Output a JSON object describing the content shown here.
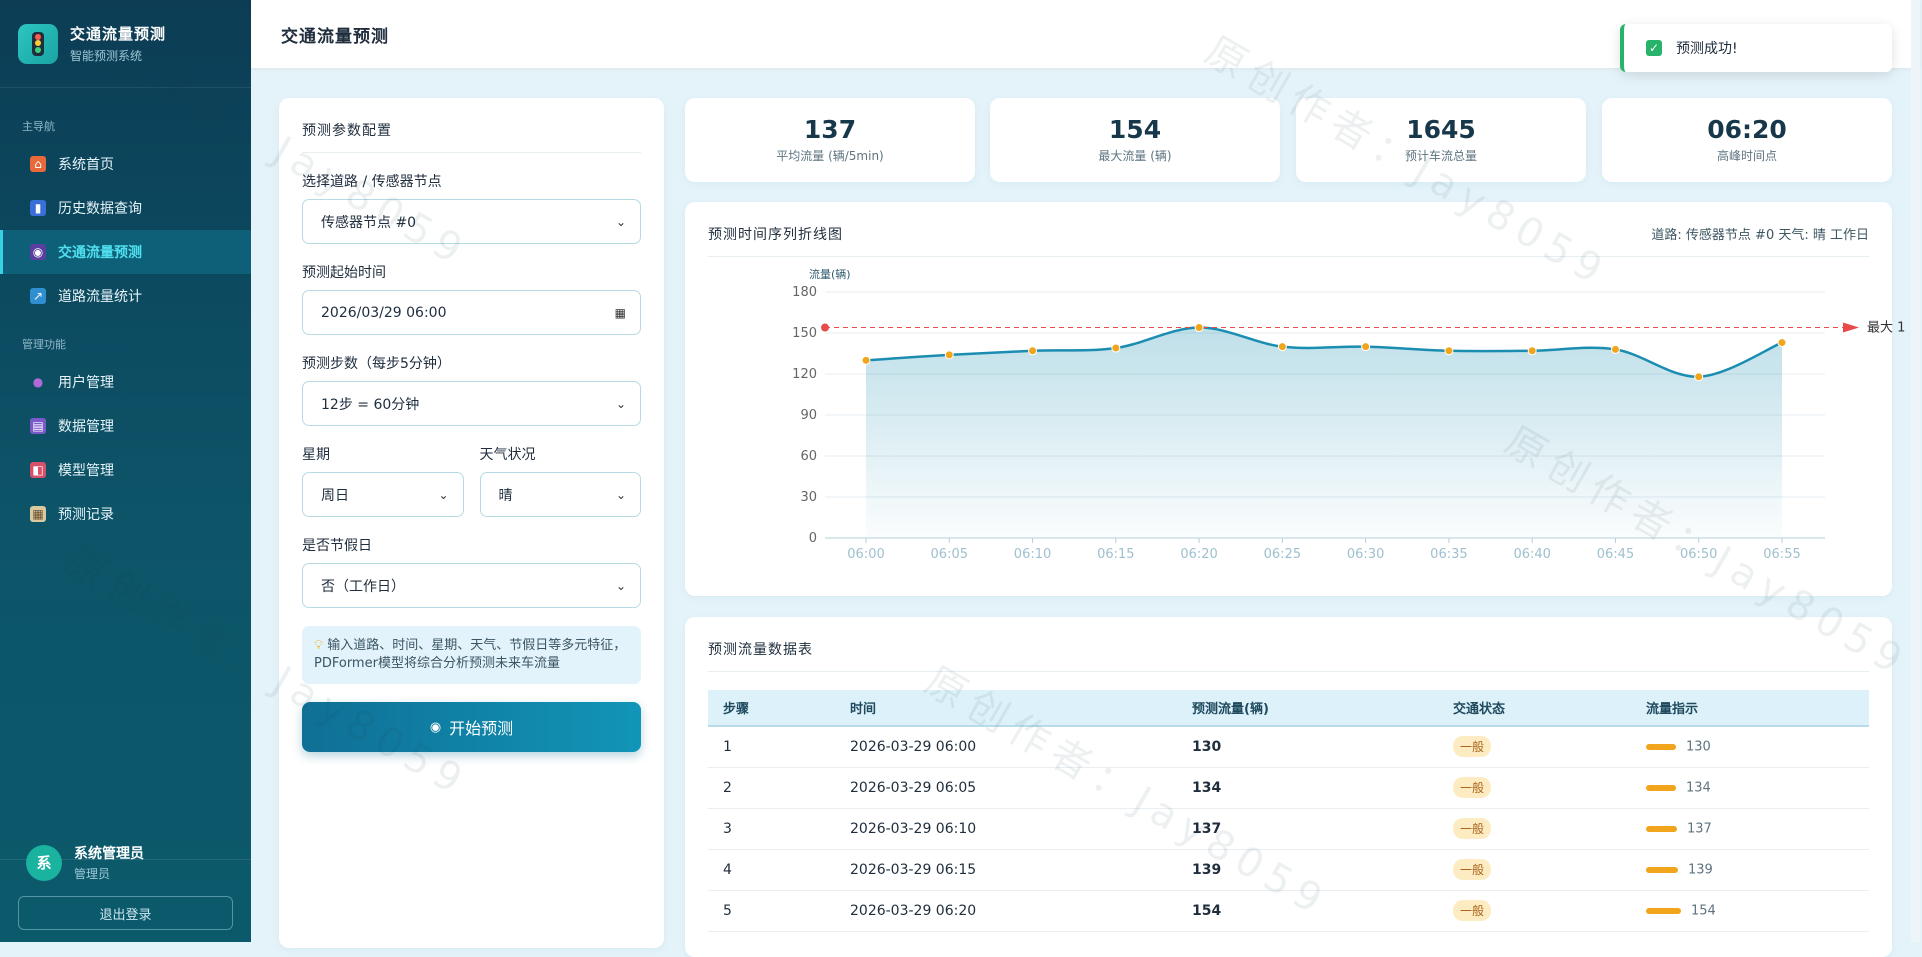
{
  "app": {
    "title": "交通流量预测",
    "subtitle": "智能预测系统"
  },
  "nav": {
    "section_main": "主导航",
    "section_admin": "管理功能",
    "main_items": [
      {
        "label": "系统首页",
        "icon": "home-icon"
      },
      {
        "label": "历史数据查询",
        "icon": "bar-chart-icon"
      },
      {
        "label": "交通流量预测",
        "icon": "prediction-icon",
        "active": true
      },
      {
        "label": "道路流量统计",
        "icon": "line-chart-icon"
      }
    ],
    "admin_items": [
      {
        "label": "用户管理",
        "icon": "users-icon"
      },
      {
        "label": "数据管理",
        "icon": "database-icon"
      },
      {
        "label": "模型管理",
        "icon": "model-icon"
      },
      {
        "label": "预测记录",
        "icon": "clipboard-icon"
      }
    ]
  },
  "user": {
    "avatar": "系",
    "name": "系统管理员",
    "role": "管理员",
    "logout_label": "退出登录"
  },
  "header": {
    "title": "交通流量预测"
  },
  "toast": {
    "text": "预测成功!",
    "icon": "check-icon",
    "color": "#27b36a"
  },
  "params": {
    "title": "预测参数配置",
    "road_label": "选择道路 / 传感器节点",
    "road_value": "传感器节点 #0",
    "start_label": "预测起始时间",
    "start_value": "2026/03/29 06:00",
    "steps_label": "预测步数（每步5分钟）",
    "steps_value": "12步 = 60分钟",
    "week_label": "星期",
    "week_value": "周日",
    "weather_label": "天气状况",
    "weather_value": "晴",
    "holiday_label": "是否节假日",
    "holiday_value": "否（工作日）",
    "tip": "输入道路、时间、星期、天气、节假日等多元特征，PDFormer模型将综合分析预测未来车流量",
    "start_button": "开始预测"
  },
  "stats": [
    {
      "value": "137",
      "label": "平均流量 (辆/5min)"
    },
    {
      "value": "154",
      "label": "最大流量 (辆)"
    },
    {
      "value": "1645",
      "label": "预计车流总量"
    },
    {
      "value": "06:20",
      "label": "高峰时间点"
    }
  ],
  "chart_title": "预测时间序列折线图",
  "chart_meta": "道路: 传感器节点 #0 天气: 晴 工作日",
  "chart_data": {
    "type": "line",
    "ylabel": "流量(辆)",
    "ylim": [
      0,
      180
    ],
    "yticks": [
      0,
      30,
      60,
      90,
      120,
      150,
      180
    ],
    "x": [
      "06:00",
      "06:05",
      "06:10",
      "06:15",
      "06:20",
      "06:25",
      "06:30",
      "06:35",
      "06:40",
      "06:45",
      "06:50",
      "06:55"
    ],
    "series": [
      {
        "values": [
          130,
          134,
          137,
          139,
          154,
          140,
          140,
          137,
          137,
          138,
          118,
          143
        ],
        "color": "#1a8db0"
      }
    ],
    "max_line": {
      "value": 154,
      "label": "最大 1",
      "color": "#e84a4a"
    },
    "area": true,
    "grid": true
  },
  "table": {
    "title": "预测流量数据表",
    "columns": [
      "步骤",
      "时间",
      "预测流量(辆)",
      "交通状态",
      "流量指示"
    ],
    "rows": [
      {
        "step": "1",
        "time": "2026-03-29 06:00",
        "flow": "130",
        "status": "一般",
        "indicator": 130
      },
      {
        "step": "2",
        "time": "2026-03-29 06:05",
        "flow": "134",
        "status": "一般",
        "indicator": 134
      },
      {
        "step": "3",
        "time": "2026-03-29 06:10",
        "flow": "137",
        "status": "一般",
        "indicator": 137
      },
      {
        "step": "4",
        "time": "2026-03-29 06:15",
        "flow": "139",
        "status": "一般",
        "indicator": 139
      },
      {
        "step": "5",
        "time": "2026-03-29 06:20",
        "flow": "154",
        "status": "一般",
        "indicator": 154
      }
    ]
  },
  "watermark": "原创作者：Jay8059"
}
